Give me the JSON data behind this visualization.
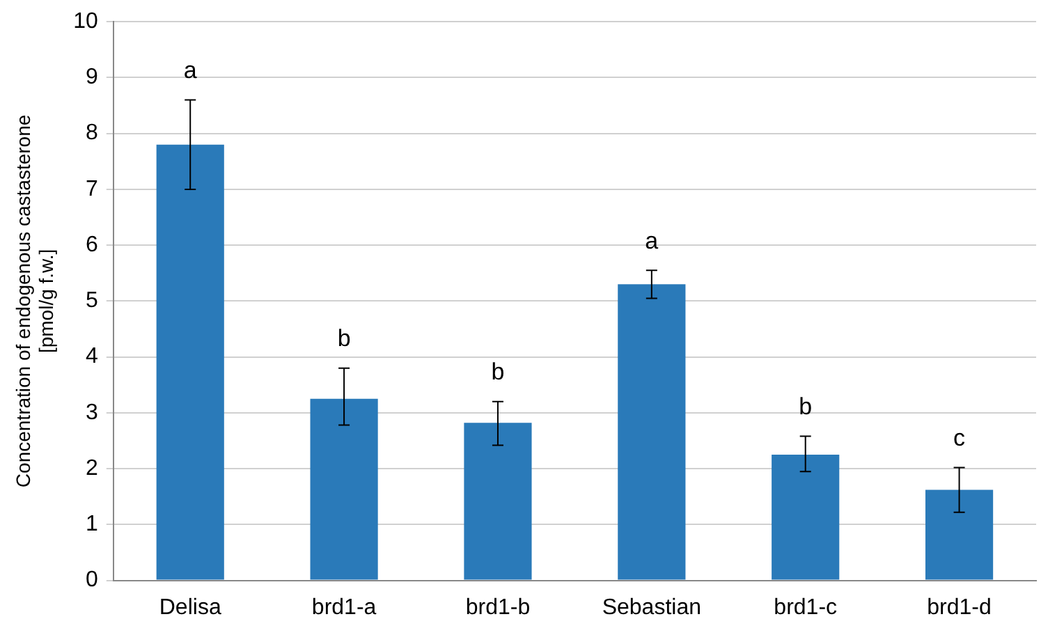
{
  "chart_data": {
    "type": "bar",
    "ylabel": "Concentration of endogenous castasterone\n[pmol/g f.w.]",
    "categories": [
      "Delisa",
      "brd1-a",
      "brd1-b",
      "Sebastian",
      "brd1-c",
      "brd1-d"
    ],
    "values": [
      7.8,
      3.25,
      2.82,
      5.3,
      2.25,
      1.62
    ],
    "errors": [
      0.8,
      [
        2.78,
        3.8
      ],
      [
        2.42,
        3.2
      ],
      0.25,
      [
        1.95,
        2.58
      ],
      0.4
    ],
    "color": "#2a7ab9",
    "ylim": [
      0,
      10
    ],
    "yticks": [
      0,
      1,
      2,
      3,
      4,
      5,
      6,
      7,
      8,
      9,
      10
    ],
    "grid": "y",
    "legend": false,
    "annotations": [
      "a",
      "b",
      "b",
      "a",
      "b",
      "c"
    ]
  }
}
